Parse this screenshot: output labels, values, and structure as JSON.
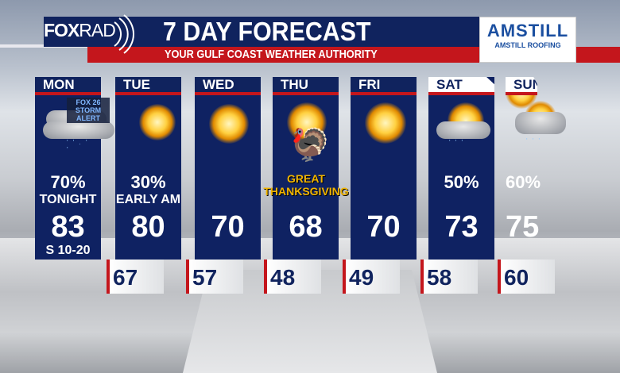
{
  "header": {
    "brand": "FOXRAD",
    "brand_parts": [
      "FOX",
      "RAD"
    ],
    "title": "7 DAY FORECAST",
    "subtitle": "YOUR GULF COAST WEATHER AUTHORITY"
  },
  "sponsor": {
    "logo_text": "AMSTILL",
    "name": "AMSTILL ROOFING"
  },
  "colors": {
    "navy": "#10235e",
    "red": "#c4161c",
    "gold": "#f0b400"
  },
  "days": [
    {
      "day": "MON",
      "icon": "storm-cloud-rain-icon",
      "badge": "FOX 26 STORM ALERT",
      "badge_lines": [
        "FOX 26",
        "STORM ALERT"
      ],
      "precip": "70%",
      "precip_note": "TONIGHT",
      "high": "83",
      "wind": "S 10-20",
      "low": "67"
    },
    {
      "day": "TUE",
      "icon": "sun-cloud-icon",
      "precip": "30%",
      "precip_note": "EARLY AM",
      "high": "80",
      "low": "57"
    },
    {
      "day": "WED",
      "icon": "sunny-icon",
      "high": "70",
      "low": "48"
    },
    {
      "day": "THU",
      "icon": "turkey-sun-icon",
      "note_lines": [
        "GREAT",
        "THANKSGIVING"
      ],
      "high": "68",
      "low": "49"
    },
    {
      "day": "FRI",
      "icon": "sunny-icon",
      "high": "70",
      "low": "58"
    },
    {
      "day": "SAT",
      "icon": "partly-cloudy-rain-icon",
      "precip": "50%",
      "high": "73",
      "low": "60"
    },
    {
      "day": "SUN",
      "icon": "cloud-rain-icon",
      "precip": "60%",
      "high": "75"
    }
  ]
}
